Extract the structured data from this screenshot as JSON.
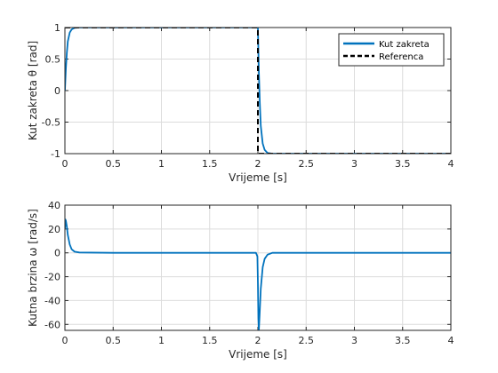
{
  "chart_data": [
    {
      "type": "line",
      "xlabel": "Vrijeme [s]",
      "ylabel": "Kut zakreta θ [rad]",
      "xlim": [
        0,
        4
      ],
      "ylim": [
        -1,
        1
      ],
      "xticks": [
        "0",
        "0.5",
        "1",
        "1.5",
        "2",
        "2.5",
        "3",
        "3.5",
        "4"
      ],
      "yticks": [
        "1",
        "0.5",
        "0",
        "-0.5",
        "-1"
      ],
      "grid": true,
      "legend": {
        "placement": "top-right",
        "entries": [
          "Kut zakreta",
          "Referenca"
        ]
      },
      "series": [
        {
          "name": "Kut zakreta",
          "color": "#0072BD",
          "style": "solid",
          "x": [
            0,
            0.01,
            0.02,
            0.03,
            0.05,
            0.07,
            0.1,
            0.15,
            0.5,
            1.0,
            1.5,
            1.99,
            2.0,
            2.01,
            2.02,
            2.03,
            2.05,
            2.07,
            2.1,
            2.15,
            2.5,
            3.0,
            3.5,
            4.0
          ],
          "y": [
            0,
            0.35,
            0.6,
            0.78,
            0.92,
            0.97,
            0.995,
            1.0,
            1.0,
            1.0,
            1.0,
            1.0,
            1.0,
            0.3,
            -0.2,
            -0.56,
            -0.84,
            -0.94,
            -0.99,
            -1.0,
            -1.0,
            -1.0,
            -1.0,
            -1.0
          ]
        },
        {
          "name": "Referenca",
          "color": "#000000",
          "style": "dashed",
          "x": [
            0,
            2.0,
            2.0,
            4.0
          ],
          "y": [
            1,
            1,
            -1,
            -1
          ]
        }
      ]
    },
    {
      "type": "line",
      "xlabel": "Vrijeme [s]",
      "ylabel": "Kutna brzina ω [rad/s]",
      "xlim": [
        0,
        4
      ],
      "ylim": [
        -65,
        40
      ],
      "xticks": [
        "0",
        "0.5",
        "1",
        "1.5",
        "2",
        "2.5",
        "3",
        "3.5",
        "4"
      ],
      "yticks": [
        "40",
        "20",
        "0",
        "-20",
        "-40",
        "-60"
      ],
      "grid": true,
      "series": [
        {
          "name": "",
          "color": "#0072BD",
          "style": "solid",
          "x": [
            0,
            0.005,
            0.01,
            0.02,
            0.03,
            0.05,
            0.07,
            0.1,
            0.15,
            0.5,
            1.0,
            1.5,
            1.98,
            1.995,
            2.0,
            2.005,
            2.01,
            2.02,
            2.03,
            2.05,
            2.07,
            2.1,
            2.15,
            2.5,
            3.0,
            3.5,
            4.0
          ],
          "y": [
            20,
            28,
            27,
            22,
            15,
            7,
            3,
            1,
            0.3,
            0,
            0,
            0,
            0,
            -3,
            -25,
            -55,
            -65,
            -48,
            -30,
            -12,
            -5,
            -1.5,
            0,
            0,
            0,
            0,
            0
          ]
        }
      ]
    }
  ]
}
